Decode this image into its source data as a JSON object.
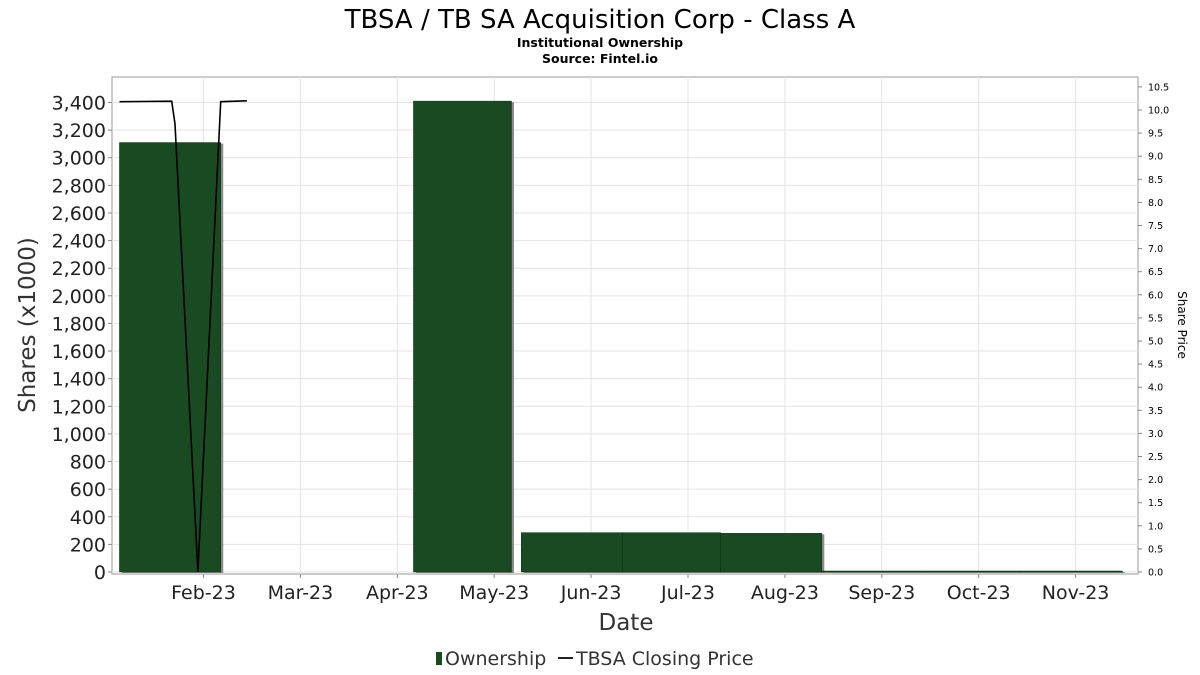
{
  "chart_data": {
    "type": "bar",
    "title": "TBSA / TB SA Acquisition Corp - Class A",
    "subtitle": "Institutional Ownership",
    "source": "Source: Fintel.io",
    "xlabel": "Date",
    "ylabel": "Shares (x1000)",
    "y2label": "Share Price",
    "ylim": [
      0,
      3600
    ],
    "y2lim": [
      0,
      10.65
    ],
    "categories": [
      "Feb-23",
      "Mar-23",
      "Apr-23",
      "May-23",
      "Jun-23",
      "Jul-23",
      "Aug-23",
      "Sep-23",
      "Oct-23",
      "Nov-23"
    ],
    "y_ticks": [
      "0",
      "200",
      "400",
      "600",
      "800",
      "1,000",
      "1,200",
      "1,400",
      "1,600",
      "1,800",
      "2,000",
      "2,200",
      "2,400",
      "2,600",
      "2,800",
      "3,000",
      "3,200",
      "3,400"
    ],
    "y2_ticks": [
      "0.0",
      "0.5",
      "1.0",
      "1.5",
      "2.0",
      "2.5",
      "3.0",
      "3.5",
      "4.0",
      "4.5",
      "5.0",
      "5.5",
      "6.0",
      "6.5",
      "7.0",
      "7.5",
      "8.0",
      "8.5",
      "9.0",
      "9.5",
      "10.0",
      "10.5"
    ],
    "grid": true,
    "legend_position": "bottom-center",
    "series": [
      {
        "name": "Ownership",
        "type": "bar",
        "color": "#1a4a22",
        "points": [
          {
            "date": "2023-01-15",
            "end": "2023-02-15",
            "value": 3110
          },
          {
            "date": "2023-04-15",
            "end": "2023-05-15",
            "value": 3410
          },
          {
            "date": "2023-05-18",
            "end": "2023-06-18",
            "value": 285
          },
          {
            "date": "2023-06-18",
            "end": "2023-07-18",
            "value": 285
          },
          {
            "date": "2023-07-18",
            "end": "2023-08-18",
            "value": 280
          },
          {
            "date": "2023-08-18",
            "end": "2023-09-18",
            "value": 5
          },
          {
            "date": "2023-09-18",
            "end": "2023-10-18",
            "value": 5
          },
          {
            "date": "2023-10-18",
            "end": "2023-11-18",
            "value": 3
          }
        ]
      },
      {
        "name": "TBSA Closing Price",
        "type": "line",
        "color": "#000000",
        "points": [
          {
            "date": "2023-01-15",
            "value": 10.18
          },
          {
            "date": "2023-01-31",
            "value": 10.19
          },
          {
            "date": "2023-02-01",
            "value": 9.7
          },
          {
            "date": "2023-02-08",
            "value": 0.0
          },
          {
            "date": "2023-02-15",
            "value": 10.18
          },
          {
            "date": "2023-02-23",
            "value": 10.2
          }
        ]
      }
    ]
  }
}
